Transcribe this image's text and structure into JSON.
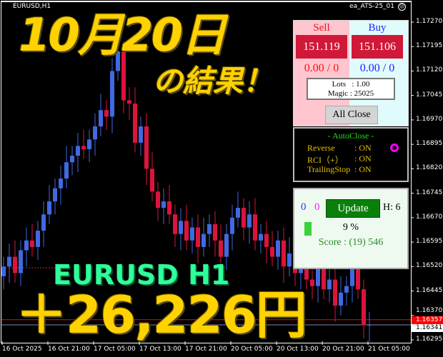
{
  "chart": {
    "symbol": "EURUSD,H1",
    "ea_name": "ea_ATS-25_01",
    "ea_status_icon": "frown-face-icon",
    "price_axis": [
      "1.17270",
      "1.17195",
      "1.17120",
      "1.17045",
      "1.16970",
      "1.16895",
      "1.16820",
      "1.16745",
      "1.16670",
      "1.16595",
      "1.16520",
      "1.16445",
      "1.16370",
      "1.16295"
    ],
    "time_axis": [
      "16 Oct 2025",
      "16 Oct 21:00",
      "17 Oct 05:00",
      "17 Oct 13:00",
      "17 Oct 21:00",
      "20 Oct 05:00",
      "20 Oct 13:00",
      "20 Oct 21:00",
      "21 Oct 05:00"
    ],
    "current_price": "1.16341",
    "ask_line_price": "1.16357",
    "bull_color": "#4169e1",
    "bear_color": "#dc143c",
    "closes": [
      1.1652,
      1.1655,
      1.165,
      1.1657,
      1.166,
      1.1658,
      1.1663,
      1.1668,
      1.1672,
      1.1676,
      1.1679,
      1.1684,
      1.1686,
      1.1689,
      1.1688,
      1.1691,
      1.1695,
      1.17,
      1.1698,
      1.1712,
      1.1718,
      1.1703,
      1.1702,
      1.169,
      1.1695,
      1.1682,
      1.1675,
      1.167,
      1.1672,
      1.1668,
      1.1662,
      1.1666,
      1.166,
      1.1664,
      1.1658,
      1.1662,
      1.1665,
      1.166,
      1.1655,
      1.1662,
      1.1667,
      1.167,
      1.1664,
      1.1668,
      1.166,
      1.1662,
      1.1658,
      1.1655,
      1.166,
      1.1652,
      1.1656,
      1.165,
      1.1655,
      1.1648,
      1.1646,
      1.1652,
      1.1645,
      1.1648,
      1.164,
      1.1644,
      1.1646,
      1.166,
      1.1645,
      1.1634,
      1.16341
    ]
  },
  "overlay": {
    "date_title": "10月20日",
    "result_title": "の結果！",
    "pair_label": "EURUSD H1",
    "profit": "＋26,226円"
  },
  "panel": {
    "sell_label": "Sell",
    "buy_label": "Buy",
    "sell_price": "151.119",
    "buy_price": "151.106",
    "sell_pl": "0.00 / 0",
    "buy_pl": "0.00 / 0",
    "lots": "Lots   : 1.00",
    "magic": "Magic : 25025",
    "all_close": "All Close"
  },
  "autoclose": {
    "title": "- AutoClose -",
    "rows": [
      {
        "label": "Reverse",
        "value": ": ON"
      },
      {
        "label": "RCI（+）",
        "value": ": ON"
      },
      {
        "label": "TrailingStop",
        "value": ": ON"
      }
    ]
  },
  "stats": {
    "count_blue": "0",
    "count_magenta": "0",
    "update": "Update",
    "h": "H: 6",
    "progress_percent": 9,
    "progress_label": "9 %",
    "score": "Score : (19) 546"
  }
}
